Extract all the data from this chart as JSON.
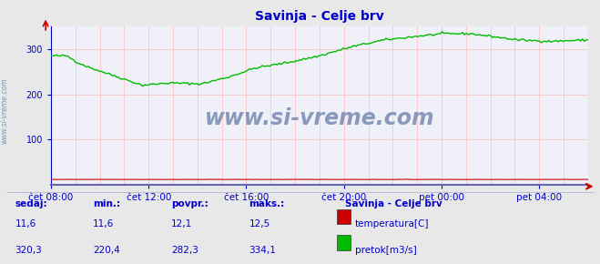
{
  "title": "Savinja - Celje brv",
  "title_color": "#0000cc",
  "bg_color": "#e8e8e8",
  "plot_bg_color": "#f0f0f8",
  "grid_v_color": "#ffbbbb",
  "grid_h_color": "#ffbbbb",
  "x_labels": [
    "čet 08:00",
    "čet 12:00",
    "čet 16:00",
    "čet 20:00",
    "pet 00:00",
    "pet 04:00"
  ],
  "x_ticks_norm": [
    0.0,
    0.1818,
    0.3636,
    0.5454,
    0.7272,
    0.909
  ],
  "y_ticks": [
    100,
    200,
    300
  ],
  "y_min": 0,
  "y_max": 350,
  "axis_color": "#0000cc",
  "tick_color": "#0000cc",
  "temp_color": "#cc0000",
  "flow_color": "#00bb00",
  "watermark_text": "www.si-vreme.com",
  "watermark_color": "#8899bb",
  "sidebar_text": "www.si-vreme.com",
  "legend_title": "Savinja - Celje brv",
  "legend_color": "#0000cc",
  "stats_headers": [
    "sedaj:",
    "min.:",
    "povpr.:",
    "maks.:"
  ],
  "stats_temp": [
    "11,6",
    "11,6",
    "12,1",
    "12,5"
  ],
  "stats_flow": [
    "320,3",
    "220,4",
    "282,3",
    "334,1"
  ],
  "label_temp": "temperatura[C]",
  "label_flow": "pretok[m3/s]",
  "stats_color": "#0000cc",
  "bottom_line_color": "#6666aa",
  "arrow_color": "#cc0000"
}
